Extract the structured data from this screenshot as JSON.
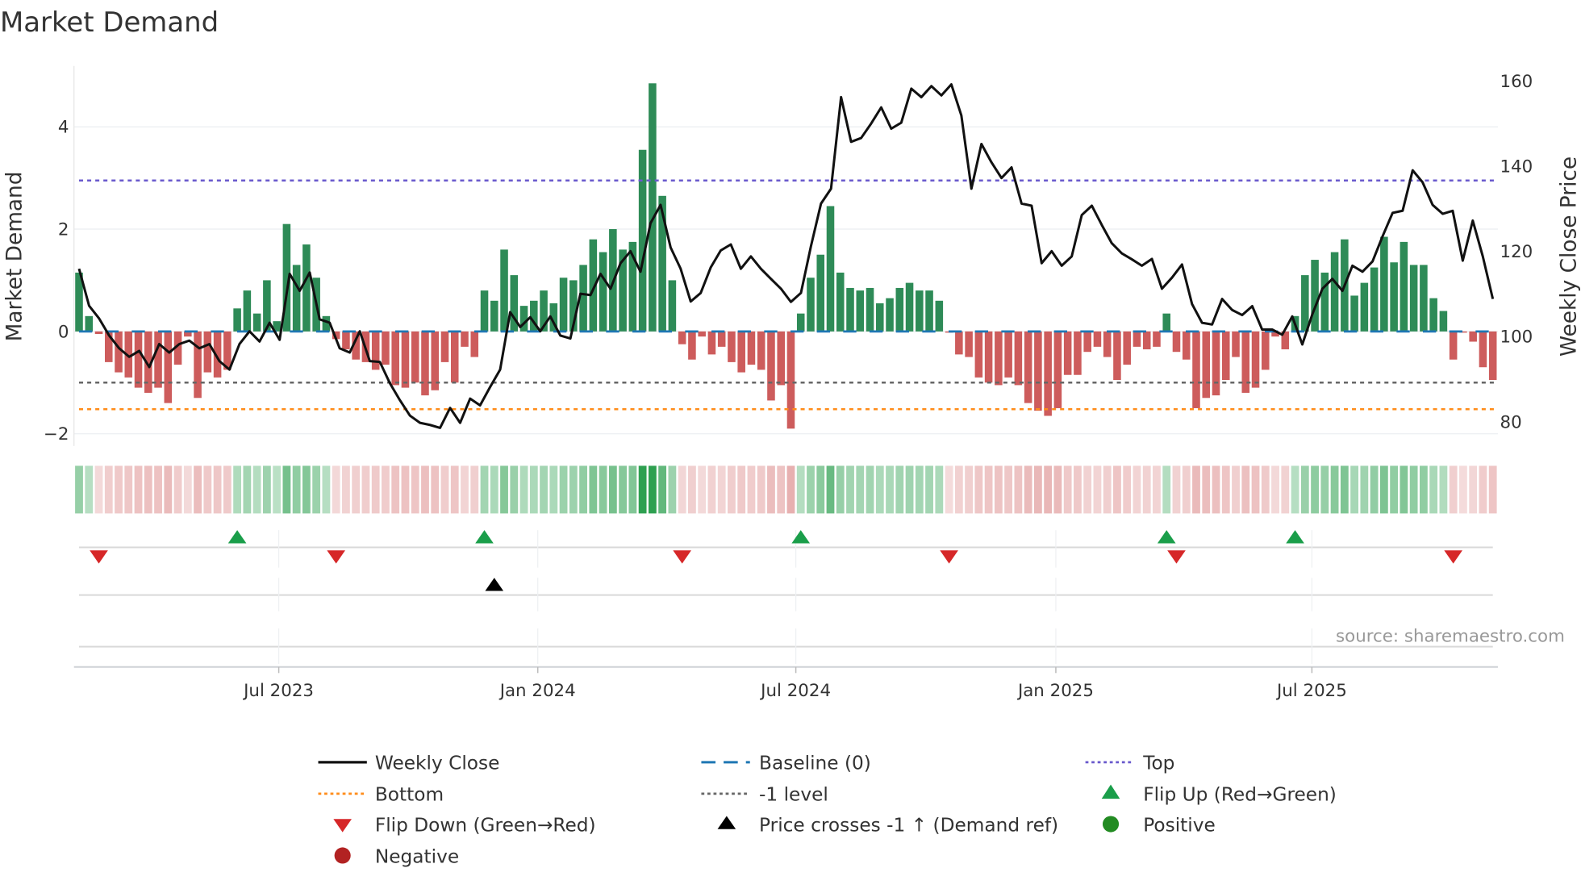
{
  "chart_data": {
    "type": "bar",
    "title": "Market Demand",
    "ylabel": "Market Demand",
    "y2label": "Weekly Close Price",
    "ylim": [
      -2.24,
      5.19
    ],
    "y2lim": [
      79,
      161
    ],
    "yticks": [
      4,
      2,
      0,
      -2
    ],
    "ytick_labels": [
      "4",
      "2",
      "0",
      "−2"
    ],
    "y2ticks": [
      160,
      140,
      120,
      100,
      80
    ],
    "y2tick_labels": [
      "160",
      "140",
      "120",
      "100",
      "80"
    ],
    "xticks": [
      {
        "label": "Jul 2023",
        "week_index": 20.2
      },
      {
        "label": "Jan 2024",
        "week_index": 46.4
      },
      {
        "label": "Jul 2024",
        "week_index": 72.5
      },
      {
        "label": "Jan 2025",
        "week_index": 98.8
      },
      {
        "label": "Jul 2025",
        "week_index": 124.7
      }
    ],
    "levels": {
      "top": 2.95,
      "baseline": 0,
      "minus_one": -1,
      "bottom": -1.52
    },
    "demand": [
      1.15,
      0.3,
      -0.05,
      -0.6,
      -0.8,
      -0.9,
      -1.1,
      -1.2,
      -1.1,
      -1.4,
      -0.65,
      -0.1,
      -1.3,
      -0.8,
      -0.9,
      -0.75,
      0.45,
      0.8,
      0.35,
      1.0,
      0.2,
      2.1,
      1.3,
      1.7,
      1.05,
      0.3,
      -0.15,
      -0.35,
      -0.55,
      -0.6,
      -0.75,
      -0.65,
      -1.05,
      -1.1,
      -1.0,
      -1.25,
      -1.15,
      -0.6,
      -1.0,
      -0.3,
      -0.5,
      0.8,
      0.6,
      1.6,
      1.1,
      0.5,
      0.6,
      0.8,
      0.55,
      1.05,
      1.0,
      1.3,
      1.8,
      1.55,
      2.0,
      1.6,
      1.75,
      3.55,
      4.85,
      2.65,
      1.0,
      -0.25,
      -0.55,
      -0.1,
      -0.45,
      -0.3,
      -0.6,
      -0.8,
      -0.65,
      -0.75,
      -1.35,
      -1.05,
      -1.9,
      0.35,
      1.05,
      1.5,
      2.45,
      1.15,
      0.85,
      0.8,
      0.85,
      0.55,
      0.65,
      0.85,
      0.95,
      0.8,
      0.8,
      0.6,
      -0.02,
      -0.45,
      -0.5,
      -0.9,
      -1.0,
      -1.05,
      -0.9,
      -1.05,
      -1.4,
      -1.55,
      -1.65,
      -1.5,
      -0.85,
      -0.85,
      -0.4,
      -0.3,
      -0.5,
      -0.95,
      -0.65,
      -0.3,
      -0.35,
      -0.3,
      0.35,
      -0.4,
      -0.55,
      -1.5,
      -1.3,
      -1.25,
      -0.95,
      -0.5,
      -1.2,
      -1.1,
      -0.75,
      -0.1,
      -0.35,
      0.3,
      1.1,
      1.4,
      1.15,
      1.55,
      1.8,
      0.7,
      0.95,
      1.25,
      1.85,
      1.35,
      1.75,
      1.3,
      1.3,
      0.65,
      0.4,
      -0.55,
      -0.02,
      -0.2,
      -0.7,
      -0.95
    ],
    "weekly_close": [
      115.7,
      107,
      104,
      100,
      97,
      95,
      96.4,
      92.6,
      98,
      96,
      98,
      98.8,
      97,
      98,
      94,
      92,
      98,
      101,
      98.6,
      103,
      99,
      114.5,
      110.5,
      114.8,
      103.8,
      103,
      97,
      96,
      101,
      94,
      93.8,
      88.8,
      84.8,
      81.2,
      79.5,
      79,
      78.3,
      83,
      79.5,
      85.2,
      83.6,
      87.9,
      92,
      105.5,
      102,
      104.3,
      101,
      104.5,
      100,
      99.3,
      109.8,
      109.5,
      114.5,
      111,
      117,
      119.8,
      115,
      126.4,
      130.7,
      120.7,
      115.7,
      108,
      110,
      116,
      120,
      121.4,
      115.7,
      118.6,
      115.7,
      113.3,
      111,
      107.9,
      110,
      121,
      131,
      134.5,
      156,
      145.5,
      146.4,
      149.8,
      153.6,
      148.6,
      150,
      158,
      156,
      158.6,
      156.4,
      159,
      151.7,
      134.5,
      145,
      140.7,
      137,
      139.5,
      131,
      130.5,
      117,
      119.8,
      116.4,
      118.6,
      128.3,
      130.5,
      126,
      121.7,
      119.3,
      117.9,
      116.4,
      118,
      111,
      113.6,
      116.7,
      107.4,
      103,
      102.6,
      108.6,
      106,
      104.8,
      106.9,
      101.4,
      101.4,
      100.2,
      104.5,
      97.9,
      105,
      111,
      113.3,
      110.5,
      116.4,
      115,
      117.4,
      123.3,
      128.8,
      129.3,
      138.8,
      136,
      130.7,
      128.6,
      129.3,
      117.6,
      127,
      118.6,
      108.6
    ],
    "flip_up_weeks": [
      16,
      41,
      73,
      110,
      123
    ],
    "flip_down_weeks": [
      2,
      26,
      61,
      88,
      111,
      139
    ],
    "price_cross_weeks": [
      42
    ],
    "legend": {
      "weekly_close": "Weekly Close",
      "baseline": "Baseline (0)",
      "top": "Top",
      "bottom": "Bottom",
      "minus_one": "-1 level",
      "flip_up": "Flip Up (Red→Green)",
      "flip_down": "Flip Down (Green→Red)",
      "price_cross": "Price crosses -1 ↑ (Demand ref)",
      "positive": "Positive",
      "negative": "Negative"
    },
    "source": "source: sharemaestro.com"
  },
  "colors": {
    "positive": "#2e8b57",
    "negative": "#cd5c5c",
    "price": "#111111",
    "top": "#6a5acd",
    "bottom": "#ff8c1a",
    "minus_one": "#666666",
    "baseline": "#1f77b4",
    "flip_up": "#1a9e4a",
    "flip_down": "#d62728",
    "pos_dot": "#228b22",
    "neg_dot": "#b22222"
  }
}
